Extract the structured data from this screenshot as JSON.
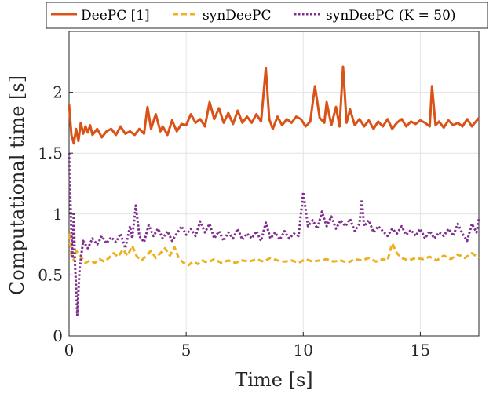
{
  "chart_data": {
    "type": "line",
    "title": "",
    "xlabel": "Time [s]",
    "ylabel": "Computational time [s]",
    "xlim": [
      0,
      17.5
    ],
    "ylim": [
      0,
      2.5
    ],
    "x_ticks": [
      0,
      5,
      10,
      15
    ],
    "y_ticks": [
      0,
      0.5,
      1,
      1.5,
      2
    ],
    "grid": true,
    "legend_position": "top, horizontal, outside",
    "series": [
      {
        "name": "DeePC [1]",
        "color": "#D95319",
        "style": "solid",
        "points": [
          [
            0,
            1.9
          ],
          [
            0.1,
            1.65
          ],
          [
            0.2,
            1.58
          ],
          [
            0.3,
            1.7
          ],
          [
            0.4,
            1.6
          ],
          [
            0.5,
            1.75
          ],
          [
            0.6,
            1.66
          ],
          [
            0.7,
            1.72
          ],
          [
            0.8,
            1.67
          ],
          [
            0.9,
            1.73
          ],
          [
            1.0,
            1.65
          ],
          [
            1.2,
            1.7
          ],
          [
            1.4,
            1.63
          ],
          [
            1.6,
            1.68
          ],
          [
            1.8,
            1.7
          ],
          [
            2.0,
            1.65
          ],
          [
            2.2,
            1.72
          ],
          [
            2.4,
            1.66
          ],
          [
            2.6,
            1.68
          ],
          [
            2.8,
            1.65
          ],
          [
            3.0,
            1.7
          ],
          [
            3.2,
            1.66
          ],
          [
            3.35,
            1.88
          ],
          [
            3.5,
            1.7
          ],
          [
            3.7,
            1.82
          ],
          [
            3.9,
            1.68
          ],
          [
            4.0,
            1.72
          ],
          [
            4.2,
            1.65
          ],
          [
            4.4,
            1.77
          ],
          [
            4.6,
            1.68
          ],
          [
            4.8,
            1.74
          ],
          [
            5.0,
            1.73
          ],
          [
            5.2,
            1.82
          ],
          [
            5.4,
            1.75
          ],
          [
            5.6,
            1.78
          ],
          [
            5.8,
            1.72
          ],
          [
            6.0,
            1.92
          ],
          [
            6.2,
            1.78
          ],
          [
            6.4,
            1.87
          ],
          [
            6.6,
            1.75
          ],
          [
            6.8,
            1.83
          ],
          [
            7.0,
            1.74
          ],
          [
            7.2,
            1.85
          ],
          [
            7.4,
            1.75
          ],
          [
            7.6,
            1.8
          ],
          [
            7.8,
            1.75
          ],
          [
            8.0,
            1.82
          ],
          [
            8.2,
            1.76
          ],
          [
            8.4,
            2.2
          ],
          [
            8.55,
            1.78
          ],
          [
            8.7,
            1.7
          ],
          [
            8.9,
            1.8
          ],
          [
            9.1,
            1.73
          ],
          [
            9.3,
            1.78
          ],
          [
            9.5,
            1.75
          ],
          [
            9.7,
            1.8
          ],
          [
            9.9,
            1.78
          ],
          [
            10.1,
            1.72
          ],
          [
            10.3,
            1.76
          ],
          [
            10.5,
            2.05
          ],
          [
            10.7,
            1.79
          ],
          [
            10.9,
            1.75
          ],
          [
            11.0,
            1.92
          ],
          [
            11.2,
            1.73
          ],
          [
            11.4,
            1.88
          ],
          [
            11.55,
            1.72
          ],
          [
            11.7,
            2.21
          ],
          [
            11.85,
            1.75
          ],
          [
            12.0,
            1.86
          ],
          [
            12.2,
            1.73
          ],
          [
            12.4,
            1.78
          ],
          [
            12.6,
            1.72
          ],
          [
            12.8,
            1.77
          ],
          [
            13.0,
            1.7
          ],
          [
            13.2,
            1.76
          ],
          [
            13.4,
            1.72
          ],
          [
            13.6,
            1.78
          ],
          [
            13.8,
            1.7
          ],
          [
            14.0,
            1.75
          ],
          [
            14.2,
            1.78
          ],
          [
            14.4,
            1.72
          ],
          [
            14.6,
            1.76
          ],
          [
            14.8,
            1.74
          ],
          [
            15.0,
            1.77
          ],
          [
            15.2,
            1.75
          ],
          [
            15.4,
            1.72
          ],
          [
            15.5,
            2.05
          ],
          [
            15.65,
            1.73
          ],
          [
            15.8,
            1.76
          ],
          [
            16.0,
            1.71
          ],
          [
            16.2,
            1.77
          ],
          [
            16.4,
            1.73
          ],
          [
            16.6,
            1.75
          ],
          [
            16.8,
            1.72
          ],
          [
            17.0,
            1.78
          ],
          [
            17.2,
            1.72
          ],
          [
            17.5,
            1.79
          ]
        ]
      },
      {
        "name": "synDeePC",
        "color": "#EDB120",
        "style": "dashed",
        "points": [
          [
            0,
            0.84
          ],
          [
            0.1,
            0.66
          ],
          [
            0.2,
            0.62
          ],
          [
            0.3,
            0.7
          ],
          [
            0.5,
            0.65
          ],
          [
            0.7,
            0.6
          ],
          [
            0.9,
            0.62
          ],
          [
            1.1,
            0.6
          ],
          [
            1.3,
            0.63
          ],
          [
            1.5,
            0.61
          ],
          [
            1.7,
            0.64
          ],
          [
            1.9,
            0.68
          ],
          [
            2.1,
            0.65
          ],
          [
            2.3,
            0.71
          ],
          [
            2.5,
            0.66
          ],
          [
            2.7,
            0.74
          ],
          [
            2.9,
            0.65
          ],
          [
            3.1,
            0.62
          ],
          [
            3.3,
            0.66
          ],
          [
            3.5,
            0.7
          ],
          [
            3.7,
            0.64
          ],
          [
            3.9,
            0.68
          ],
          [
            4.1,
            0.72
          ],
          [
            4.3,
            0.66
          ],
          [
            4.5,
            0.73
          ],
          [
            4.7,
            0.63
          ],
          [
            4.9,
            0.6
          ],
          [
            5.1,
            0.58
          ],
          [
            5.3,
            0.61
          ],
          [
            5.5,
            0.59
          ],
          [
            5.7,
            0.62
          ],
          [
            5.9,
            0.6
          ],
          [
            6.2,
            0.63
          ],
          [
            6.5,
            0.6
          ],
          [
            6.8,
            0.62
          ],
          [
            7.1,
            0.6
          ],
          [
            7.4,
            0.62
          ],
          [
            7.7,
            0.61
          ],
          [
            8.0,
            0.63
          ],
          [
            8.3,
            0.61
          ],
          [
            8.6,
            0.64
          ],
          [
            8.9,
            0.62
          ],
          [
            9.2,
            0.61
          ],
          [
            9.5,
            0.62
          ],
          [
            9.8,
            0.6
          ],
          [
            10.1,
            0.63
          ],
          [
            10.4,
            0.61
          ],
          [
            10.7,
            0.62
          ],
          [
            11.0,
            0.63
          ],
          [
            11.3,
            0.61
          ],
          [
            11.6,
            0.62
          ],
          [
            11.9,
            0.6
          ],
          [
            12.2,
            0.63
          ],
          [
            12.5,
            0.62
          ],
          [
            12.8,
            0.64
          ],
          [
            13.1,
            0.61
          ],
          [
            13.4,
            0.63
          ],
          [
            13.6,
            0.62
          ],
          [
            13.8,
            0.76
          ],
          [
            14.0,
            0.68
          ],
          [
            14.2,
            0.64
          ],
          [
            14.5,
            0.62
          ],
          [
            14.8,
            0.64
          ],
          [
            15.1,
            0.63
          ],
          [
            15.4,
            0.65
          ],
          [
            15.7,
            0.62
          ],
          [
            16.0,
            0.66
          ],
          [
            16.3,
            0.63
          ],
          [
            16.6,
            0.67
          ],
          [
            16.9,
            0.64
          ],
          [
            17.2,
            0.68
          ],
          [
            17.5,
            0.64
          ]
        ]
      },
      {
        "name": "synDeePC (K = 50)",
        "color": "#7E2F8E",
        "style": "dotted",
        "points": [
          [
            0,
            1.5
          ],
          [
            0.1,
            0.83
          ],
          [
            0.15,
            0.65
          ],
          [
            0.2,
            1.0
          ],
          [
            0.25,
            0.6
          ],
          [
            0.3,
            0.4
          ],
          [
            0.35,
            0.17
          ],
          [
            0.45,
            0.55
          ],
          [
            0.6,
            0.78
          ],
          [
            0.8,
            0.72
          ],
          [
            1.0,
            0.8
          ],
          [
            1.2,
            0.75
          ],
          [
            1.4,
            0.82
          ],
          [
            1.6,
            0.76
          ],
          [
            1.8,
            0.81
          ],
          [
            2.0,
            0.77
          ],
          [
            2.2,
            0.84
          ],
          [
            2.4,
            0.72
          ],
          [
            2.6,
            0.9
          ],
          [
            2.7,
            0.8
          ],
          [
            2.85,
            1.07
          ],
          [
            3.0,
            0.82
          ],
          [
            3.2,
            0.77
          ],
          [
            3.4,
            0.91
          ],
          [
            3.6,
            0.82
          ],
          [
            3.8,
            0.88
          ],
          [
            4.0,
            0.8
          ],
          [
            4.2,
            0.86
          ],
          [
            4.4,
            0.78
          ],
          [
            4.6,
            0.84
          ],
          [
            4.8,
            0.9
          ],
          [
            5.0,
            0.83
          ],
          [
            5.2,
            0.88
          ],
          [
            5.4,
            0.82
          ],
          [
            5.6,
            0.94
          ],
          [
            5.8,
            0.85
          ],
          [
            6.0,
            0.92
          ],
          [
            6.2,
            0.8
          ],
          [
            6.4,
            0.86
          ],
          [
            6.6,
            0.78
          ],
          [
            6.8,
            0.85
          ],
          [
            7.0,
            0.8
          ],
          [
            7.2,
            0.88
          ],
          [
            7.4,
            0.79
          ],
          [
            7.6,
            0.84
          ],
          [
            7.8,
            0.8
          ],
          [
            8.0,
            0.86
          ],
          [
            8.2,
            0.78
          ],
          [
            8.4,
            0.93
          ],
          [
            8.6,
            0.8
          ],
          [
            8.8,
            0.85
          ],
          [
            9.0,
            0.79
          ],
          [
            9.2,
            0.86
          ],
          [
            9.4,
            0.8
          ],
          [
            9.6,
            0.84
          ],
          [
            9.8,
            0.82
          ],
          [
            10.0,
            1.18
          ],
          [
            10.2,
            0.9
          ],
          [
            10.4,
            0.95
          ],
          [
            10.6,
            0.88
          ],
          [
            10.8,
            1.02
          ],
          [
            11.0,
            0.9
          ],
          [
            11.2,
            0.98
          ],
          [
            11.4,
            0.88
          ],
          [
            11.6,
            0.95
          ],
          [
            11.8,
            0.9
          ],
          [
            12.0,
            0.96
          ],
          [
            12.2,
            0.86
          ],
          [
            12.4,
            0.92
          ],
          [
            12.5,
            1.12
          ],
          [
            12.6,
            0.9
          ],
          [
            12.8,
            0.95
          ],
          [
            13.0,
            0.85
          ],
          [
            13.2,
            0.9
          ],
          [
            13.4,
            0.86
          ],
          [
            13.6,
            0.82
          ],
          [
            13.8,
            0.88
          ],
          [
            14.0,
            0.84
          ],
          [
            14.2,
            0.9
          ],
          [
            14.4,
            0.83
          ],
          [
            14.6,
            0.87
          ],
          [
            14.8,
            0.82
          ],
          [
            15.0,
            0.88
          ],
          [
            15.2,
            0.8
          ],
          [
            15.4,
            0.86
          ],
          [
            15.6,
            0.8
          ],
          [
            15.8,
            0.85
          ],
          [
            16.0,
            0.82
          ],
          [
            16.2,
            0.88
          ],
          [
            16.4,
            0.82
          ],
          [
            16.6,
            0.92
          ],
          [
            16.8,
            0.84
          ],
          [
            17.0,
            0.78
          ],
          [
            17.2,
            0.92
          ],
          [
            17.4,
            0.85
          ],
          [
            17.5,
            0.96
          ]
        ]
      }
    ]
  }
}
